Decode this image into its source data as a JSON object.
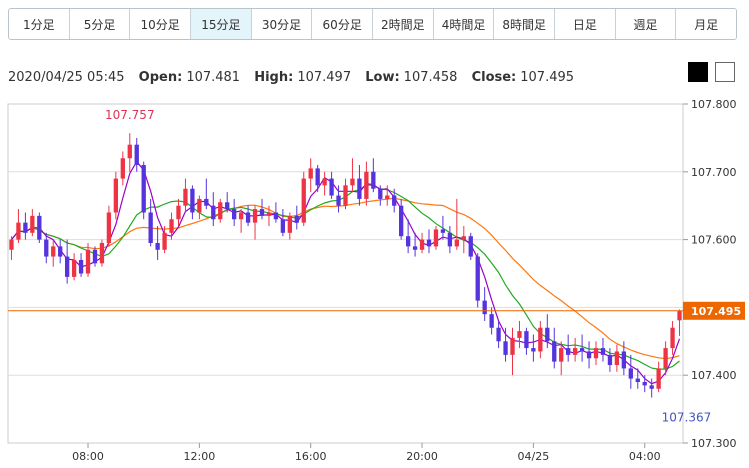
{
  "tabs": [
    {
      "label": "1分足",
      "active": false
    },
    {
      "label": "5分足",
      "active": false
    },
    {
      "label": "10分足",
      "active": false
    },
    {
      "label": "15分足",
      "active": true
    },
    {
      "label": "30分足",
      "active": false
    },
    {
      "label": "60分足",
      "active": false
    },
    {
      "label": "2時間足",
      "active": false
    },
    {
      "label": "4時間足",
      "active": false
    },
    {
      "label": "8時間足",
      "active": false
    },
    {
      "label": "日足",
      "active": false
    },
    {
      "label": "週足",
      "active": false
    },
    {
      "label": "月足",
      "active": false
    }
  ],
  "ohlc": {
    "datetime": "2020/04/25 05:45",
    "open_label": "Open:",
    "open": "107.481",
    "high_label": "High:",
    "high": "107.497",
    "low_label": "Low:",
    "low": "107.458",
    "close_label": "Close:",
    "close": "107.495"
  },
  "theme_buttons": [
    "dark",
    "light"
  ],
  "chart_data": {
    "type": "candlestick",
    "ylim": [
      107.3,
      107.8
    ],
    "y_ticks": [
      "107.800",
      "107.700",
      "107.600",
      "107.500",
      "107.400",
      "107.300"
    ],
    "x_ticks": [
      {
        "label": "08:00",
        "index": 11
      },
      {
        "label": "12:00",
        "index": 27
      },
      {
        "label": "16:00",
        "index": 43
      },
      {
        "label": "20:00",
        "index": 59
      },
      {
        "label": "04/25",
        "index": 75
      },
      {
        "label": "04:00",
        "index": 91
      }
    ],
    "current_price": 107.495,
    "current_price_label": "107.495",
    "annotations": [
      {
        "text": "107.757",
        "value": 107.757,
        "index": 17,
        "kind": "high"
      },
      {
        "text": "107.367",
        "value": 107.367,
        "index": 97,
        "kind": "low"
      }
    ],
    "colors": {
      "up": "#ee3344",
      "down": "#5533dd",
      "ma_short": "#9900cc",
      "ma_mid": "#22aa22",
      "ma_long": "#ff7711",
      "price_line": "#ee6600"
    },
    "candles": [
      [
        107.585,
        107.605,
        107.57,
        107.6
      ],
      [
        107.6,
        107.645,
        107.595,
        107.625
      ],
      [
        107.625,
        107.64,
        107.6,
        107.61
      ],
      [
        107.61,
        107.645,
        107.605,
        107.635
      ],
      [
        107.635,
        107.64,
        107.595,
        107.6
      ],
      [
        107.6,
        107.61,
        107.565,
        107.575
      ],
      [
        107.575,
        107.6,
        107.56,
        107.59
      ],
      [
        107.59,
        107.6,
        107.565,
        107.575
      ],
      [
        107.575,
        107.6,
        107.535,
        107.545
      ],
      [
        107.545,
        107.58,
        107.54,
        107.57
      ],
      [
        107.57,
        107.58,
        107.545,
        107.55
      ],
      [
        107.55,
        107.595,
        107.545,
        107.585
      ],
      [
        107.585,
        107.59,
        107.56,
        107.565
      ],
      [
        107.565,
        107.6,
        107.56,
        107.595
      ],
      [
        107.595,
        107.65,
        107.59,
        107.64
      ],
      [
        107.64,
        107.7,
        107.63,
        107.69
      ],
      [
        107.69,
        107.73,
        107.68,
        107.72
      ],
      [
        107.72,
        107.757,
        107.7,
        107.74
      ],
      [
        107.74,
        107.75,
        107.7,
        107.71
      ],
      [
        107.71,
        107.715,
        107.63,
        107.64
      ],
      [
        107.64,
        107.66,
        107.59,
        107.595
      ],
      [
        107.595,
        107.62,
        107.57,
        107.585
      ],
      [
        107.585,
        107.62,
        107.58,
        107.61
      ],
      [
        107.61,
        107.64,
        107.6,
        107.63
      ],
      [
        107.63,
        107.66,
        107.62,
        107.65
      ],
      [
        107.65,
        107.69,
        107.64,
        107.675
      ],
      [
        107.675,
        107.68,
        107.63,
        107.64
      ],
      [
        107.64,
        107.665,
        107.63,
        107.66
      ],
      [
        107.66,
        107.69,
        107.645,
        107.65
      ],
      [
        107.65,
        107.67,
        107.62,
        107.63
      ],
      [
        107.63,
        107.66,
        107.625,
        107.655
      ],
      [
        107.655,
        107.67,
        107.64,
        107.645
      ],
      [
        107.645,
        107.66,
        107.62,
        107.63
      ],
      [
        107.63,
        107.645,
        107.61,
        107.64
      ],
      [
        107.64,
        107.65,
        107.62,
        107.625
      ],
      [
        107.625,
        107.65,
        107.6,
        107.645
      ],
      [
        107.645,
        107.66,
        107.63,
        107.635
      ],
      [
        107.635,
        107.65,
        107.62,
        107.64
      ],
      [
        107.64,
        107.655,
        107.625,
        107.63
      ],
      [
        107.63,
        107.645,
        107.605,
        107.61
      ],
      [
        107.61,
        107.64,
        107.6,
        107.635
      ],
      [
        107.635,
        107.65,
        107.615,
        107.625
      ],
      [
        107.625,
        107.7,
        107.62,
        107.69
      ],
      [
        107.69,
        107.72,
        107.67,
        107.705
      ],
      [
        107.705,
        107.71,
        107.67,
        107.68
      ],
      [
        107.68,
        107.7,
        107.665,
        107.69
      ],
      [
        107.69,
        107.7,
        107.66,
        107.665
      ],
      [
        107.665,
        107.68,
        107.64,
        107.65
      ],
      [
        107.65,
        107.69,
        107.645,
        107.68
      ],
      [
        107.68,
        107.72,
        107.67,
        107.69
      ],
      [
        107.69,
        107.71,
        107.65,
        107.66
      ],
      [
        107.66,
        107.715,
        107.65,
        107.7
      ],
      [
        107.7,
        107.72,
        107.67,
        107.675
      ],
      [
        107.675,
        107.68,
        107.65,
        107.66
      ],
      [
        107.66,
        107.68,
        107.65,
        107.665
      ],
      [
        107.665,
        107.675,
        107.64,
        107.65
      ],
      [
        107.65,
        107.66,
        107.6,
        107.605
      ],
      [
        107.605,
        107.63,
        107.58,
        107.59
      ],
      [
        107.59,
        107.61,
        107.575,
        107.585
      ],
      [
        107.585,
        107.61,
        107.58,
        107.6
      ],
      [
        107.6,
        107.615,
        107.58,
        107.59
      ],
      [
        107.59,
        107.62,
        107.585,
        107.615
      ],
      [
        107.615,
        107.635,
        107.6,
        107.61
      ],
      [
        107.61,
        107.62,
        107.58,
        107.59
      ],
      [
        107.59,
        107.66,
        107.585,
        107.6
      ],
      [
        107.6,
        107.62,
        107.58,
        107.605
      ],
      [
        107.605,
        107.61,
        107.57,
        107.575
      ],
      [
        107.575,
        107.58,
        107.5,
        107.51
      ],
      [
        107.51,
        107.53,
        107.48,
        107.49
      ],
      [
        107.49,
        107.5,
        107.46,
        107.47
      ],
      [
        107.47,
        107.48,
        107.44,
        107.45
      ],
      [
        107.45,
        107.47,
        107.42,
        107.43
      ],
      [
        107.43,
        107.47,
        107.4,
        107.455
      ],
      [
        107.455,
        107.48,
        107.44,
        107.465
      ],
      [
        107.465,
        107.47,
        107.43,
        107.44
      ],
      [
        107.44,
        107.46,
        107.42,
        107.435
      ],
      [
        107.435,
        107.48,
        107.425,
        107.47
      ],
      [
        107.47,
        107.49,
        107.44,
        107.45
      ],
      [
        107.45,
        107.47,
        107.41,
        107.42
      ],
      [
        107.42,
        107.45,
        107.4,
        107.44
      ],
      [
        107.44,
        107.46,
        107.42,
        107.43
      ],
      [
        107.43,
        107.455,
        107.42,
        107.44
      ],
      [
        107.44,
        107.46,
        107.42,
        107.435
      ],
      [
        107.435,
        107.45,
        107.41,
        107.425
      ],
      [
        107.425,
        107.45,
        107.415,
        107.44
      ],
      [
        107.44,
        107.455,
        107.42,
        107.43
      ],
      [
        107.43,
        107.44,
        107.405,
        107.415
      ],
      [
        107.415,
        107.445,
        107.405,
        107.435
      ],
      [
        107.435,
        107.45,
        107.4,
        107.41
      ],
      [
        107.41,
        107.43,
        107.38,
        107.395
      ],
      [
        107.395,
        107.41,
        107.38,
        107.39
      ],
      [
        107.39,
        107.4,
        107.375,
        107.385
      ],
      [
        107.385,
        107.395,
        107.367,
        107.38
      ],
      [
        107.38,
        107.42,
        107.375,
        107.41
      ],
      [
        107.41,
        107.45,
        107.4,
        107.44
      ],
      [
        107.44,
        107.48,
        107.43,
        107.47
      ],
      [
        107.481,
        107.497,
        107.458,
        107.495
      ]
    ]
  }
}
